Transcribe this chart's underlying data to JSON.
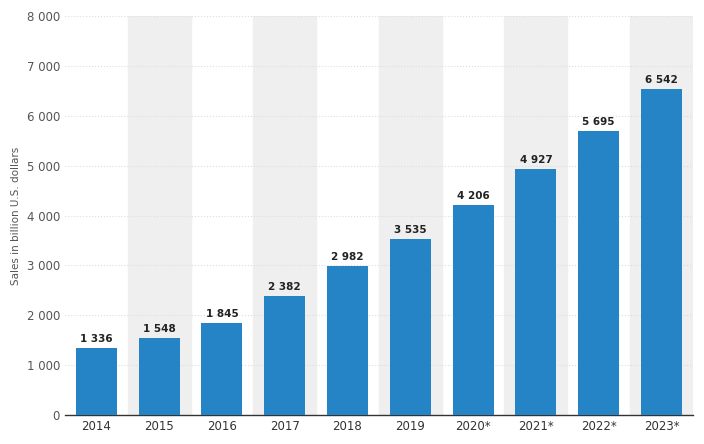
{
  "categories": [
    "2014",
    "2015",
    "2016",
    "2017",
    "2018",
    "2019",
    "2020*",
    "2021*",
    "2022*",
    "2023*"
  ],
  "values": [
    1336,
    1548,
    1845,
    2382,
    2982,
    3535,
    4206,
    4927,
    5695,
    6542
  ],
  "bar_color": "#2484c6",
  "bar_labels": [
    "1 336",
    "1 548",
    "1 845",
    "2 382",
    "2 982",
    "3 535",
    "4 206",
    "4 927",
    "5 695",
    "6 542"
  ],
  "ylabel": "Sales in billion U.S. dollars",
  "ylim": [
    0,
    8000
  ],
  "yticks": [
    0,
    1000,
    2000,
    3000,
    4000,
    5000,
    6000,
    7000,
    8000
  ],
  "ytick_labels": [
    "0",
    "1 000",
    "2 000",
    "3 000",
    "4 000",
    "5 000",
    "6 000",
    "7 000",
    "8 000"
  ],
  "background_color": "#ffffff",
  "plot_bg_color": "#ffffff",
  "column_bg_color": "#efefef",
  "grid_color": "#dddddd",
  "label_fontsize": 7.5,
  "tick_fontsize": 8.5,
  "ylabel_fontsize": 7.5,
  "bar_width": 0.65
}
